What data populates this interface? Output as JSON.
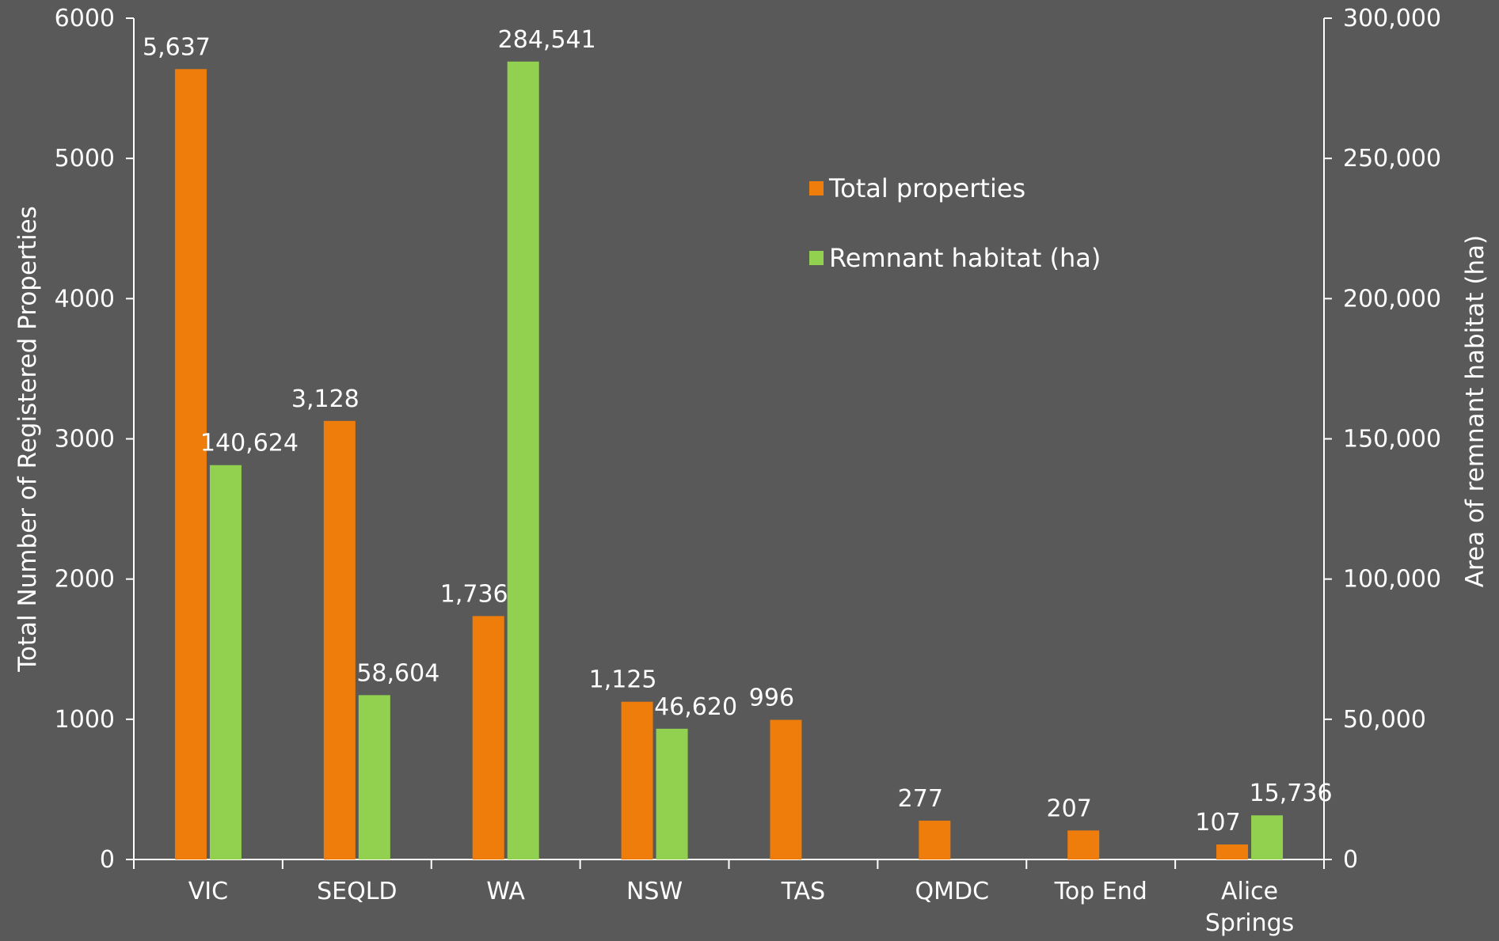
{
  "chart_data": {
    "type": "bar",
    "categories": [
      "VIC",
      "SEQLD",
      "WA",
      "NSW",
      "TAS",
      "QMDC",
      "Top End",
      "Alice Springs"
    ],
    "category_lines": [
      [
        "VIC"
      ],
      [
        "SEQLD"
      ],
      [
        "WA"
      ],
      [
        "NSW"
      ],
      [
        "TAS"
      ],
      [
        "QMDC"
      ],
      [
        "Top End"
      ],
      [
        "Alice",
        "Springs"
      ]
    ],
    "series": [
      {
        "name": "Total properties",
        "axis": "left",
        "color": "#EE7D0B",
        "values": [
          5637,
          3128,
          1736,
          1125,
          996,
          277,
          207,
          107
        ],
        "labels": [
          "5,637",
          "3,128",
          "1,736",
          "1,125",
          "996",
          "277",
          "207",
          "107"
        ]
      },
      {
        "name": "Remnant habitat (ha)",
        "axis": "right",
        "color": "#92D050",
        "values": [
          140624,
          58604,
          284541,
          46620,
          null,
          null,
          null,
          15736
        ],
        "labels": [
          "140,624",
          "58,604",
          "284,541",
          "46,620",
          "",
          "",
          "",
          "15,736"
        ]
      }
    ],
    "ylabel_left": "Total Number of Registered Properties",
    "ylabel_right": "Area of remnant habitat (ha)",
    "ylim_left": [
      0,
      6000
    ],
    "ylim_right": [
      0,
      300000
    ],
    "yticks_left": [
      "0",
      "1000",
      "2000",
      "3000",
      "4000",
      "5000",
      "6000"
    ],
    "yticks_right": [
      "0",
      "50,000",
      "100,000",
      "150,000",
      "200,000",
      "250,000",
      "300,000"
    ],
    "grid": false,
    "legend_position": "top-right"
  }
}
